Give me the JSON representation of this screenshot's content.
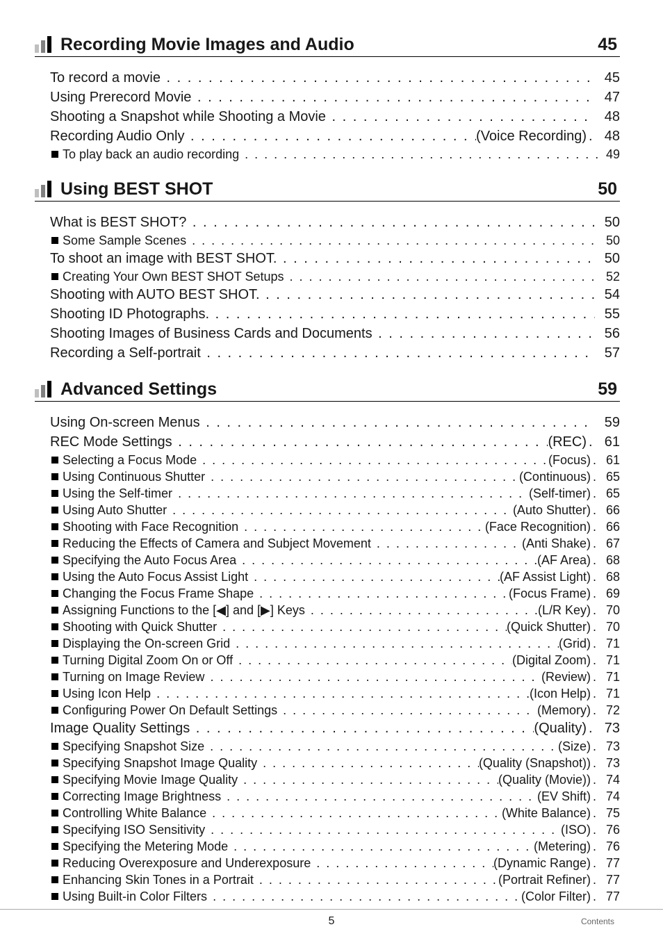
{
  "footer": {
    "page_number": "5",
    "crumb": "Contents"
  },
  "arrowLeft": "◀",
  "arrowRight": "▶",
  "sections": [
    {
      "title": "Recording Movie Images and Audio",
      "page": "45",
      "rows": [
        {
          "l": 1,
          "text": "To record a movie",
          "pg": "45"
        },
        {
          "l": 1,
          "text": "Using Prerecord Movie",
          "pg": "47"
        },
        {
          "l": 1,
          "text": "Shooting a Snapshot while Shooting a Movie",
          "pg": "48"
        },
        {
          "l": 1,
          "text": "Recording Audio Only",
          "hint": "(Voice Recording)",
          "pg": "48"
        },
        {
          "l": 2,
          "text": "To play back an audio recording",
          "pg": "49"
        }
      ]
    },
    {
      "title": "Using BEST SHOT",
      "page": "50",
      "rows": [
        {
          "l": 1,
          "text": "What is BEST SHOT?",
          "pg": "50"
        },
        {
          "l": 2,
          "text": "Some Sample Scenes",
          "pg": "50"
        },
        {
          "l": 1,
          "text": "To shoot an image with BEST SHOT.",
          "pg": "50"
        },
        {
          "l": 2,
          "text": "Creating Your Own BEST SHOT Setups",
          "pg": "52"
        },
        {
          "l": 1,
          "text": "Shooting with AUTO BEST SHOT.",
          "pg": "54"
        },
        {
          "l": 1,
          "text": "Shooting ID Photographs.",
          "pg": "55"
        },
        {
          "l": 1,
          "text": "Shooting Images of Business Cards and Documents",
          "pg": "56"
        },
        {
          "l": 1,
          "text": "Recording a Self-portrait",
          "pg": "57"
        }
      ]
    },
    {
      "title": "Advanced Settings",
      "page": "59",
      "rows": [
        {
          "l": 1,
          "text": "Using On-screen Menus",
          "pg": "59"
        },
        {
          "l": 1,
          "text": "REC Mode Settings",
          "hint": "(REC)",
          "pg": "61"
        },
        {
          "l": 2,
          "text": "Selecting a Focus Mode",
          "hint": "(Focus)",
          "pg": "61"
        },
        {
          "l": 2,
          "text": "Using Continuous Shutter",
          "hint": "(Continuous)",
          "pg": "65"
        },
        {
          "l": 2,
          "text": "Using the Self-timer",
          "hint": "(Self-timer)",
          "pg": "65"
        },
        {
          "l": 2,
          "text": "Using Auto Shutter",
          "hint": "(Auto Shutter)",
          "pg": "66"
        },
        {
          "l": 2,
          "text": "Shooting with Face Recognition",
          "hint": "(Face Recognition)",
          "pg": "66"
        },
        {
          "l": 2,
          "text": "Reducing the Effects of Camera and Subject Movement",
          "hint": "(Anti Shake)",
          "pg": "67"
        },
        {
          "l": 2,
          "text": "Specifying the Auto Focus Area",
          "hint": "(AF Area)",
          "pg": "68"
        },
        {
          "l": 2,
          "text": "Using the Auto Focus Assist Light",
          "hint": "(AF Assist Light)",
          "pg": "68"
        },
        {
          "l": 2,
          "text": "Changing the Focus Frame Shape",
          "hint": "(Focus Frame)",
          "pg": "69"
        },
        {
          "l": 2,
          "text": "Assigning Functions to the [@L@] and [@R@] Keys",
          "hint": "(L/R Key)",
          "pg": "70"
        },
        {
          "l": 2,
          "text": "Shooting with Quick Shutter",
          "hint": "(Quick Shutter)",
          "pg": "70"
        },
        {
          "l": 2,
          "text": "Displaying the On-screen Grid",
          "hint": "(Grid)",
          "pg": "71"
        },
        {
          "l": 2,
          "text": "Turning Digital Zoom On or Off",
          "hint": "(Digital Zoom)",
          "pg": "71"
        },
        {
          "l": 2,
          "text": "Turning on Image Review",
          "hint": "(Review)",
          "pg": "71"
        },
        {
          "l": 2,
          "text": "Using Icon Help",
          "hint": "(Icon Help)",
          "pg": "71"
        },
        {
          "l": 2,
          "text": "Configuring Power On Default Settings",
          "hint": "(Memory)",
          "pg": "72"
        },
        {
          "l": 1,
          "text": "Image Quality Settings",
          "hint": "(Quality)",
          "pg": "73"
        },
        {
          "l": 2,
          "text": "Specifying Snapshot Size",
          "hint": "(Size)",
          "pg": "73"
        },
        {
          "l": 2,
          "text": "Specifying Snapshot Image Quality",
          "hint": "(Quality (Snapshot))",
          "pg": "73"
        },
        {
          "l": 2,
          "text": "Specifying Movie Image Quality",
          "hint": "(Quality (Movie))",
          "pg": "74"
        },
        {
          "l": 2,
          "text": "Correcting Image Brightness",
          "hint": "(EV Shift)",
          "pg": "74"
        },
        {
          "l": 2,
          "text": "Controlling White Balance",
          "hint": "(White Balance)",
          "pg": "75"
        },
        {
          "l": 2,
          "text": "Specifying ISO Sensitivity",
          "hint": "(ISO)",
          "pg": "76"
        },
        {
          "l": 2,
          "text": "Specifying the Metering Mode",
          "hint": "(Metering)",
          "pg": "76"
        },
        {
          "l": 2,
          "text": "Reducing Overexposure and Underexposure",
          "hint": "(Dynamic Range)",
          "pg": "77"
        },
        {
          "l": 2,
          "text": "Enhancing Skin Tones in a Portrait",
          "hint": "(Portrait Refiner)",
          "pg": "77"
        },
        {
          "l": 2,
          "text": "Using Built-in Color Filters",
          "hint": "(Color Filter)",
          "pg": "77"
        }
      ]
    }
  ]
}
